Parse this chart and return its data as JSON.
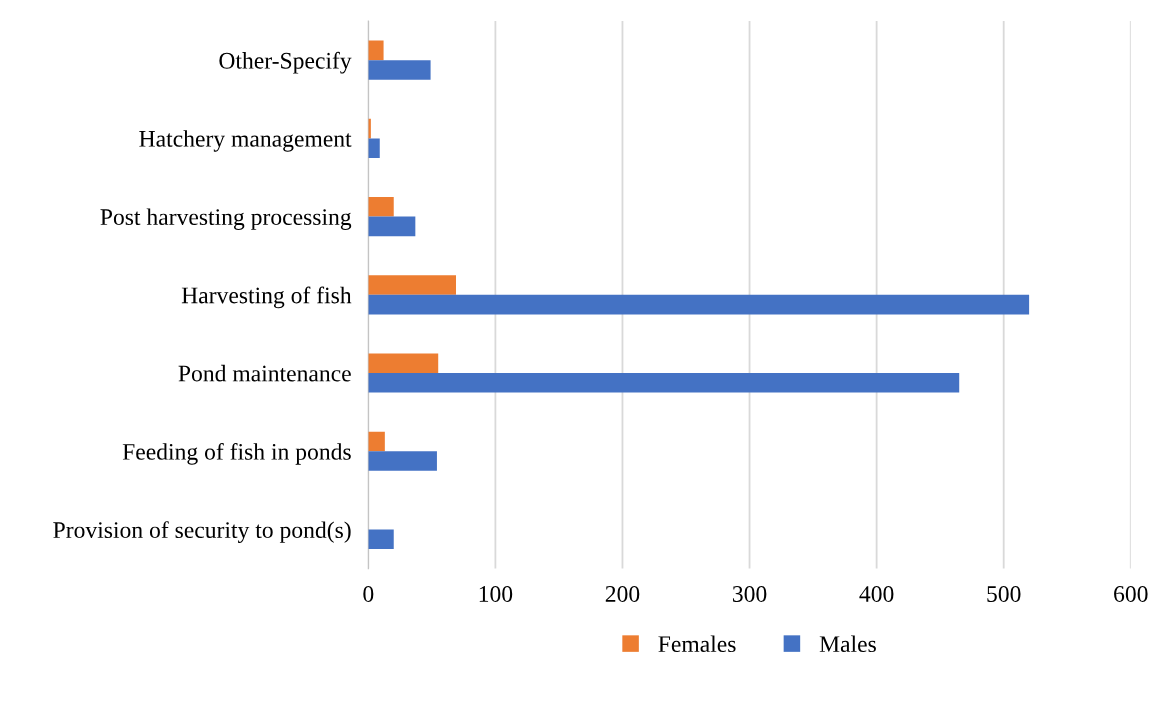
{
  "chart_data": {
    "type": "bar",
    "orientation": "horizontal",
    "categories": [
      "Other-Specify",
      "Hatchery management",
      "Post harvesting processing",
      "Harvesting of fish",
      "Pond maintenance",
      "Feeding of fish in ponds",
      "Provision of security to pond(s)"
    ],
    "series": [
      {
        "name": "Females",
        "color": "#ed7d31",
        "values": [
          12,
          2,
          20,
          69,
          55,
          13,
          0
        ]
      },
      {
        "name": "Males",
        "color": "#4472c4",
        "values": [
          49,
          9,
          37,
          520,
          465,
          54,
          20
        ]
      }
    ],
    "xlim": [
      0,
      600
    ],
    "xticks": [
      0,
      100,
      200,
      300,
      400,
      500,
      600
    ],
    "grid": "x",
    "legend": "bottom"
  }
}
